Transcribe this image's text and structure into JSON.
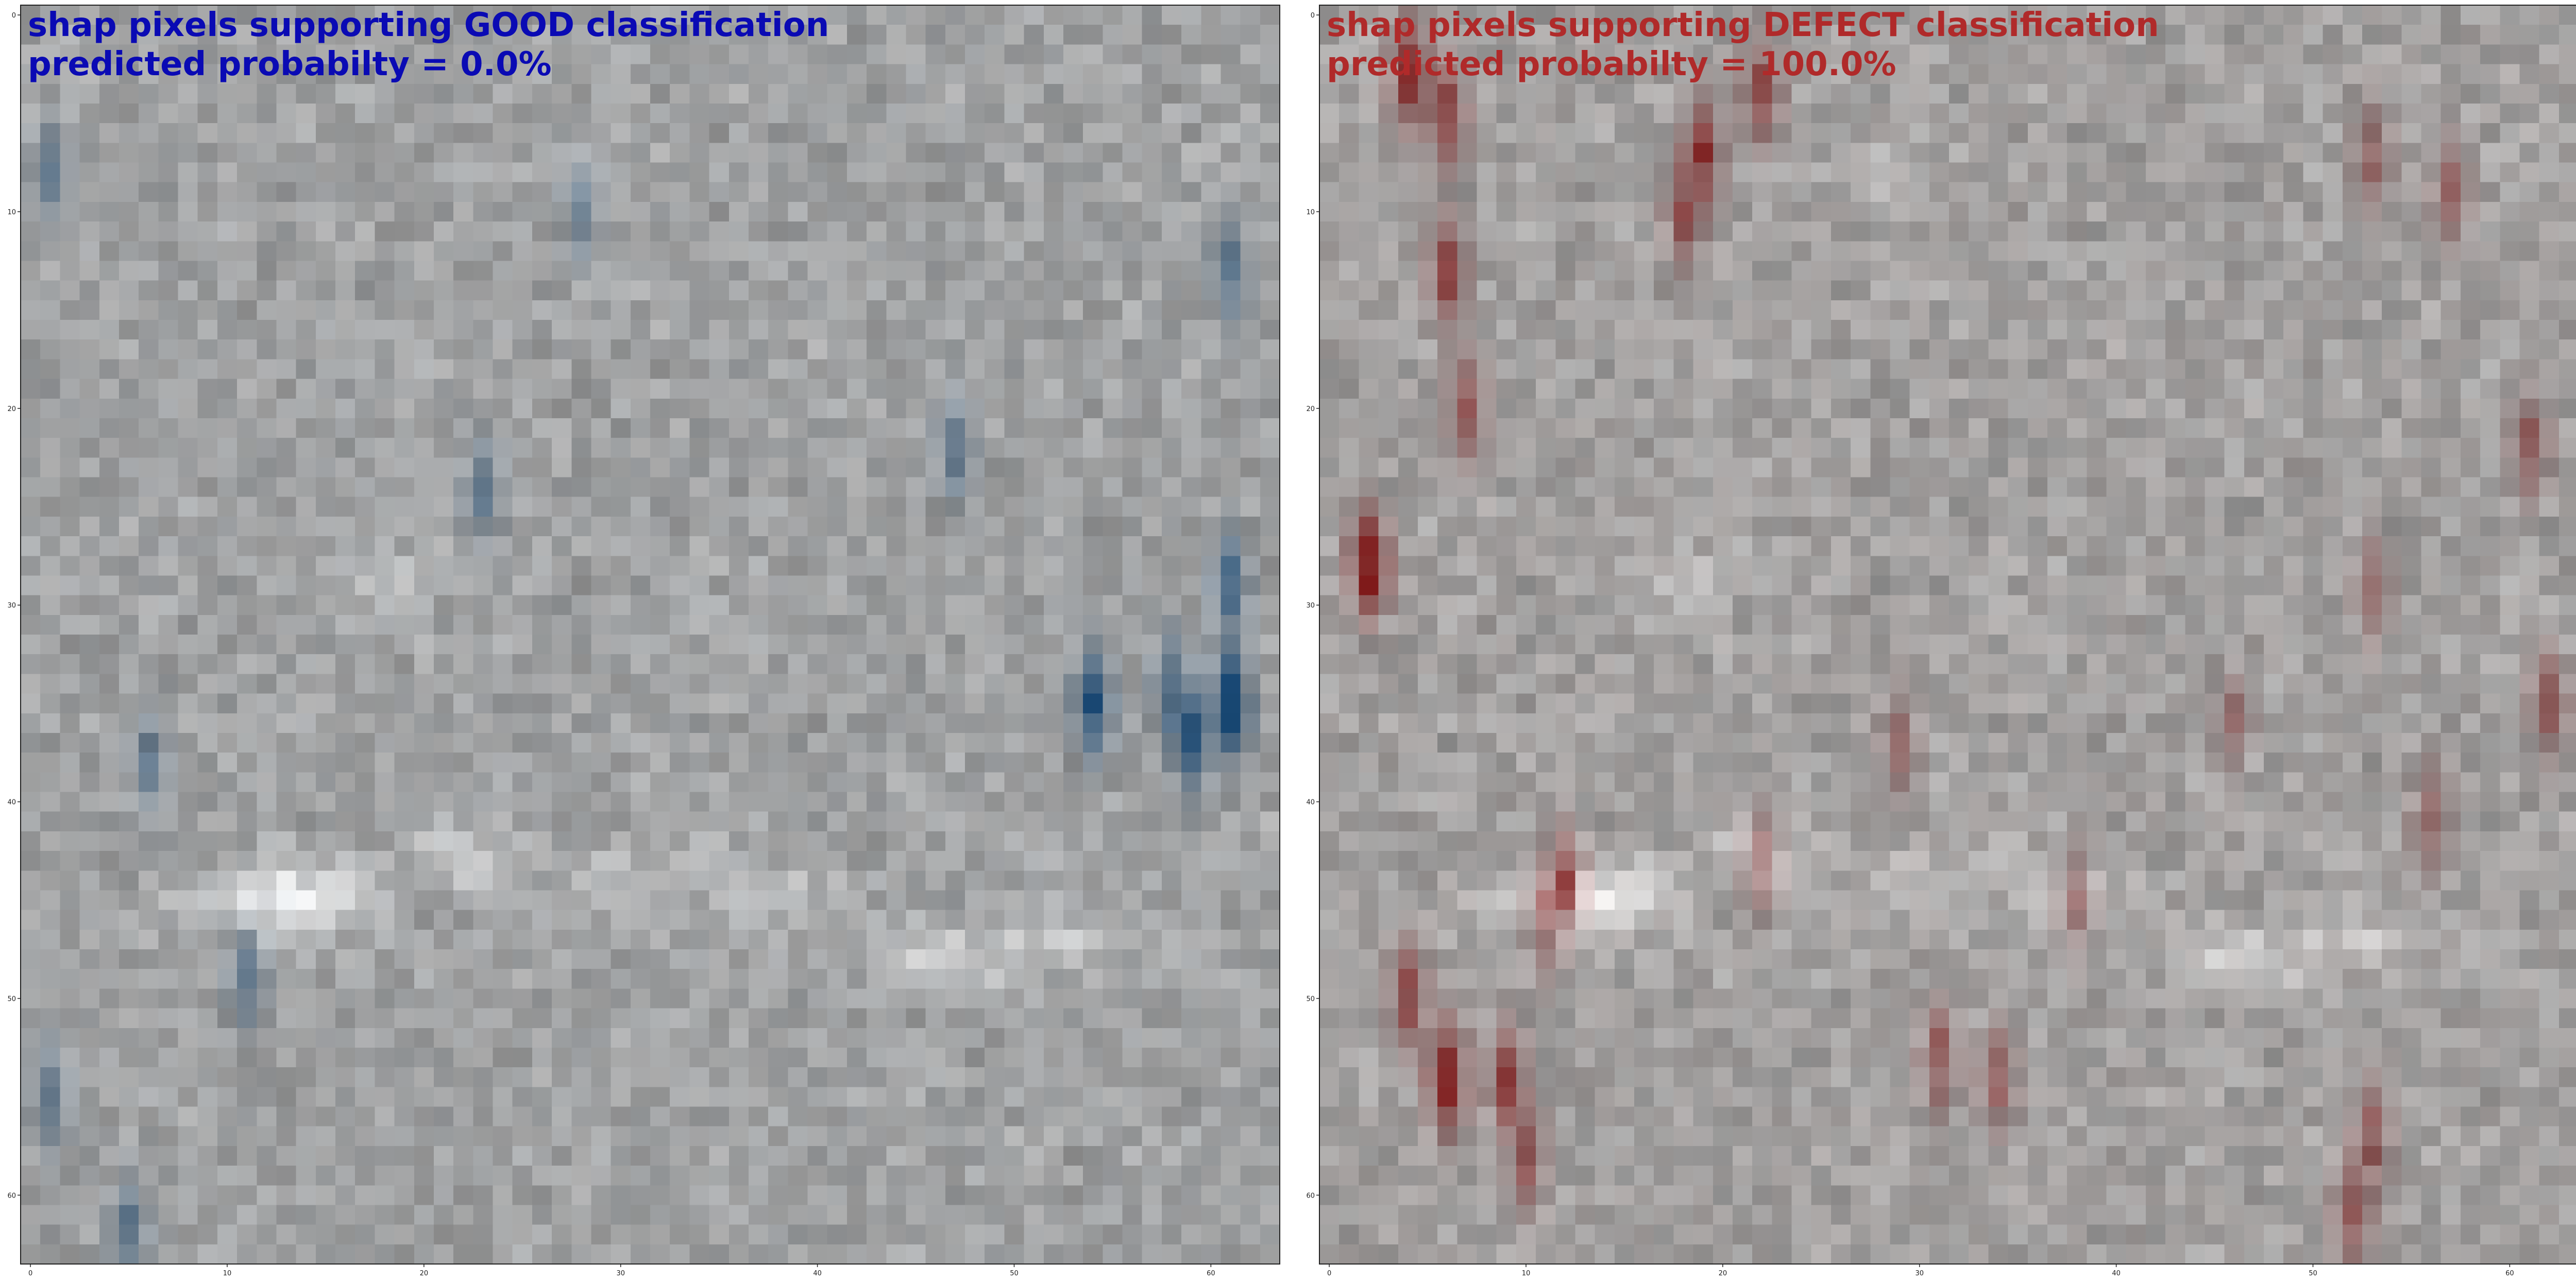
{
  "chart_data": [
    {
      "type": "heatmap",
      "title_lines": [
        "shap pixels supporting GOOD classification",
        "predicted probabilty = 0.0%"
      ],
      "title_color": "#0a0ab4",
      "overlay_color": "#0c3f6e",
      "grid_size": 64,
      "xlim": [
        0,
        63
      ],
      "ylim": [
        63,
        0
      ],
      "xticks": [
        0,
        10,
        20,
        30,
        40,
        50,
        60
      ],
      "xtick_labels": [
        "0",
        "10",
        "20",
        "30",
        "40",
        "50",
        "60"
      ],
      "yticks": [
        0,
        10,
        20,
        30,
        40,
        50,
        60
      ],
      "ytick_labels": [
        "0",
        "10",
        "20",
        "30",
        "40",
        "50",
        "60"
      ],
      "hotspots": [
        {
          "x": 61,
          "y": 35,
          "intensity": 1.0
        },
        {
          "x": 54,
          "y": 35,
          "intensity": 0.9
        },
        {
          "x": 59,
          "y": 37,
          "intensity": 0.7
        },
        {
          "x": 58,
          "y": 34,
          "intensity": 0.55
        },
        {
          "x": 61,
          "y": 29,
          "intensity": 0.6
        },
        {
          "x": 61,
          "y": 13,
          "intensity": 0.45
        },
        {
          "x": 47,
          "y": 22,
          "intensity": 0.45
        },
        {
          "x": 23,
          "y": 24,
          "intensity": 0.4
        },
        {
          "x": 1,
          "y": 55,
          "intensity": 0.4
        },
        {
          "x": 5,
          "y": 62,
          "intensity": 0.45
        },
        {
          "x": 11,
          "y": 49,
          "intensity": 0.4
        },
        {
          "x": 6,
          "y": 38,
          "intensity": 0.35
        },
        {
          "x": 28,
          "y": 10,
          "intensity": 0.35
        },
        {
          "x": 1,
          "y": 8,
          "intensity": 0.35
        }
      ]
    },
    {
      "type": "heatmap",
      "title_lines": [
        "shap pixels supporting DEFECT classification",
        "predicted probabilty = 100.0%"
      ],
      "title_color": "#b02a2a",
      "overlay_color": "#7a0d0d",
      "grid_size": 64,
      "xlim": [
        0,
        63
      ],
      "ylim": [
        63,
        0
      ],
      "xticks": [
        0,
        10,
        20,
        30,
        40,
        50,
        60
      ],
      "xtick_labels": [
        "0",
        "10",
        "20",
        "30",
        "40",
        "50",
        "60"
      ],
      "yticks": [
        0,
        10,
        20,
        30,
        40,
        50,
        60
      ],
      "ytick_labels": [
        "0",
        "10",
        "20",
        "30",
        "40",
        "50",
        "60"
      ],
      "hotspots": [
        {
          "x": 2,
          "y": 28,
          "intensity": 1.0
        },
        {
          "x": 6,
          "y": 54,
          "intensity": 1.0
        },
        {
          "x": 4,
          "y": 3,
          "intensity": 0.75
        },
        {
          "x": 6,
          "y": 5,
          "intensity": 0.7
        },
        {
          "x": 6,
          "y": 13,
          "intensity": 0.6
        },
        {
          "x": 7,
          "y": 20,
          "intensity": 0.55
        },
        {
          "x": 4,
          "y": 50,
          "intensity": 0.6
        },
        {
          "x": 9,
          "y": 54,
          "intensity": 0.6
        },
        {
          "x": 10,
          "y": 58,
          "intensity": 0.5
        },
        {
          "x": 19,
          "y": 7,
          "intensity": 0.65
        },
        {
          "x": 22,
          "y": 4,
          "intensity": 0.6
        },
        {
          "x": 18,
          "y": 10,
          "intensity": 0.5
        },
        {
          "x": 31,
          "y": 53,
          "intensity": 0.5
        },
        {
          "x": 34,
          "y": 54,
          "intensity": 0.45
        },
        {
          "x": 52,
          "y": 61,
          "intensity": 0.55
        },
        {
          "x": 53,
          "y": 57,
          "intensity": 0.45
        },
        {
          "x": 61,
          "y": 22,
          "intensity": 0.45
        },
        {
          "x": 57,
          "y": 9,
          "intensity": 0.4
        },
        {
          "x": 53,
          "y": 7,
          "intensity": 0.4
        },
        {
          "x": 62,
          "y": 35,
          "intensity": 0.45
        },
        {
          "x": 56,
          "y": 41,
          "intensity": 0.4
        },
        {
          "x": 12,
          "y": 44,
          "intensity": 0.55
        },
        {
          "x": 11,
          "y": 46,
          "intensity": 0.4
        },
        {
          "x": 22,
          "y": 43,
          "intensity": 0.35
        },
        {
          "x": 38,
          "y": 45,
          "intensity": 0.3
        },
        {
          "x": 46,
          "y": 36,
          "intensity": 0.3
        },
        {
          "x": 53,
          "y": 29,
          "intensity": 0.35
        },
        {
          "x": 29,
          "y": 37,
          "intensity": 0.3
        }
      ]
    }
  ],
  "base_image": {
    "bright_band": [
      {
        "x": 12,
        "y": 45,
        "intensity": 1.0
      },
      {
        "x": 15,
        "y": 45,
        "intensity": 0.8
      },
      {
        "x": 22,
        "y": 43,
        "intensity": 0.7
      },
      {
        "x": 30,
        "y": 44,
        "intensity": 0.6
      },
      {
        "x": 38,
        "y": 45,
        "intensity": 0.55
      },
      {
        "x": 46,
        "y": 48,
        "intensity": 0.85
      },
      {
        "x": 52,
        "y": 47,
        "intensity": 0.6
      },
      {
        "x": 18,
        "y": 29,
        "intensity": 0.45
      },
      {
        "x": 28,
        "y": 8,
        "intensity": 0.35
      }
    ]
  }
}
